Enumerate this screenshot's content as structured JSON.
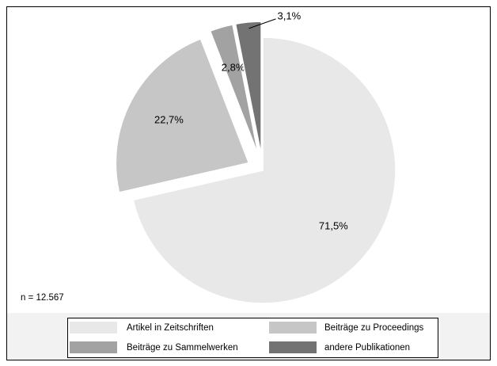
{
  "chart_data": {
    "type": "pie",
    "categories": [
      "Artikel in Zeitschriften",
      "Beiträge zu Proceedings",
      "Beiträge zu Sammelwerken",
      "andere Publikationen"
    ],
    "values": [
      71.5,
      22.7,
      2.8,
      3.1
    ],
    "value_labels": [
      "71,5%",
      "22,7%",
      "2,8%",
      "3,1%"
    ],
    "colors": [
      "#e8e8e8",
      "#c6c6c6",
      "#a2a2a2",
      "#737373"
    ],
    "annotations": [
      "n = 12.567"
    ],
    "legend": "bottom"
  }
}
